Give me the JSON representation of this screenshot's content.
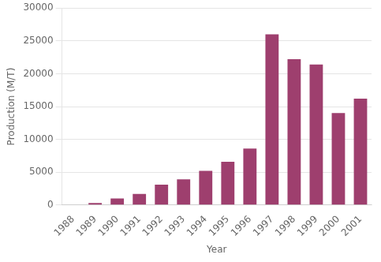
{
  "chart_data": {
    "type": "bar",
    "categories": [
      "1988",
      "1989",
      "1990",
      "1991",
      "1992",
      "1993",
      "1994",
      "1995",
      "1996",
      "1997",
      "1998",
      "1999",
      "2000",
      "2001"
    ],
    "values": [
      0,
      300,
      1000,
      1700,
      3100,
      3900,
      5200,
      6600,
      8600,
      26000,
      22200,
      21400,
      14000,
      16200
    ],
    "color": "#9e3f6e",
    "xlabel": "Year",
    "ylabel": "Production (M/T)",
    "ylim": [
      0,
      30000
    ],
    "yticks": [
      0,
      5000,
      10000,
      15000,
      20000,
      25000,
      30000
    ],
    "grid": true
  }
}
